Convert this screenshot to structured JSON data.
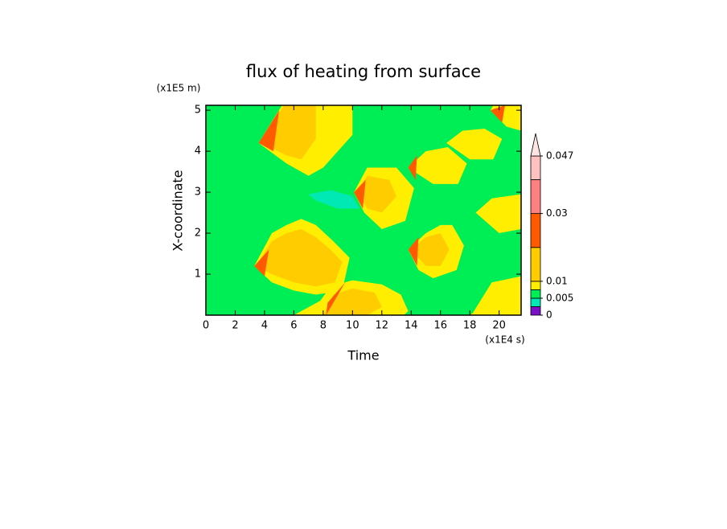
{
  "chart_data": {
    "type": "contour",
    "title": "flux of heating from surface",
    "x_label": "Time",
    "y_label": "X-coordinate",
    "x_unit": "(x1E4 s)",
    "y_unit": "(x1E5 m)",
    "xlim": [
      0,
      21.5
    ],
    "ylim": [
      0,
      5.12
    ],
    "xticks": [
      0,
      2,
      4,
      6,
      8,
      10,
      12,
      14,
      16,
      18,
      20
    ],
    "yticks": [
      1,
      2,
      3,
      4,
      5
    ],
    "background": "#00ee55",
    "colorbar": {
      "levels": [
        0,
        0.0025,
        0.005,
        0.0075,
        0.01,
        0.02,
        0.03,
        0.04,
        0.047
      ],
      "colors": [
        "#7a10c8",
        "#00e8b4",
        "#00ee55",
        "#ffee00",
        "#ffcc00",
        "#ff5a00",
        "#ff8080",
        "#ffc0c0"
      ],
      "extend_color": "#ffe4e4",
      "ticks": [
        0,
        0.005,
        0.01,
        0.03,
        0.047
      ]
    },
    "regions": [
      {
        "fill": "#ffee00",
        "x": [
          3.3,
          4.5,
          5.5,
          6.5,
          7.5,
          8.7,
          9.8,
          9.3,
          7.5,
          6,
          4.5
        ],
        "y": [
          1.2,
          2.0,
          2.2,
          2.35,
          2.2,
          1.8,
          1.4,
          0.6,
          0.5,
          0.6,
          0.8
        ]
      },
      {
        "fill": "#ffcc00",
        "x": [
          3.4,
          4.5,
          5.5,
          6.5,
          7.5,
          8.5,
          9.3,
          8.8,
          7.5,
          6,
          4.5
        ],
        "y": [
          1.2,
          1.8,
          2.0,
          2.1,
          1.9,
          1.6,
          1.3,
          0.8,
          0.7,
          0.8,
          1.0
        ]
      },
      {
        "fill": "#ffee00",
        "x": [
          3.6,
          4.8,
          5.2,
          10,
          10,
          8,
          7,
          5.5
        ],
        "y": [
          4.2,
          4.9,
          5.12,
          5.12,
          4.4,
          3.6,
          3.4,
          3.7
        ]
      },
      {
        "fill": "#ffcc00",
        "x": [
          3.8,
          4.8,
          5.3,
          7.5,
          7.5,
          6.5,
          5.5
        ],
        "y": [
          4.2,
          4.8,
          5.12,
          5.12,
          4.3,
          3.8,
          3.9
        ]
      },
      {
        "fill": "#ffee00",
        "x": [
          10.1,
          11,
          13,
          14.2,
          13.6,
          12,
          10.8
        ],
        "y": [
          3.0,
          3.6,
          3.6,
          3.1,
          2.3,
          2.1,
          2.5
        ]
      },
      {
        "fill": "#ffcc00",
        "x": [
          10.3,
          11,
          12.5,
          13,
          12,
          11
        ],
        "y": [
          3.0,
          3.4,
          3.3,
          2.9,
          2.5,
          2.6
        ]
      },
      {
        "fill": "#ffee00",
        "x": [
          6,
          7.8,
          8.5,
          10,
          12,
          13.3,
          13.8,
          13.5
        ],
        "y": [
          0,
          0.35,
          0.7,
          0.85,
          0.75,
          0.5,
          0.1,
          0
        ]
      },
      {
        "fill": "#ffcc00",
        "x": [
          8,
          8.7,
          10,
          11.5,
          12,
          11,
          8.5
        ],
        "y": [
          0,
          0.5,
          0.65,
          0.55,
          0.2,
          0,
          0
        ]
      },
      {
        "fill": "#ffee00",
        "x": [
          13.8,
          15,
          16,
          16.8,
          17.6,
          17.1,
          15.5,
          14.5
        ],
        "y": [
          1.6,
          2.0,
          2.2,
          2.2,
          1.7,
          1.1,
          0.9,
          1.1
        ]
      },
      {
        "fill": "#ffcc00",
        "x": [
          14,
          15,
          16,
          16.6,
          16,
          15
        ],
        "y": [
          1.6,
          1.9,
          2.0,
          1.6,
          1.2,
          1.2
        ]
      },
      {
        "fill": "#ffee00",
        "x": [
          13.8,
          15,
          16.5,
          17.8,
          17.2,
          15.5
        ],
        "y": [
          3.6,
          4.0,
          4.1,
          3.7,
          3.2,
          3.2
        ]
      },
      {
        "fill": "#ffee00",
        "x": [
          16.4,
          17.5,
          19,
          20.2,
          19.6,
          18
        ],
        "y": [
          4.2,
          4.5,
          4.55,
          4.3,
          3.8,
          3.8
        ]
      },
      {
        "fill": "#ffee00",
        "x": [
          19.4,
          20.5,
          21.5,
          21.5,
          19.6
        ],
        "y": [
          5.0,
          4.6,
          4.5,
          5.12,
          5.12
        ]
      },
      {
        "fill": "#ffee00",
        "x": [
          18.4,
          19.5,
          21.5,
          21.5,
          20
        ],
        "y": [
          2.5,
          2.85,
          2.95,
          2.1,
          2.0
        ]
      },
      {
        "fill": "#ffee00",
        "x": [
          18.2,
          19.5,
          21.5,
          21.5,
          18
        ],
        "y": [
          0.05,
          0.8,
          0.95,
          0,
          0
        ]
      },
      {
        "fill": "#ff5a00",
        "x": [
          3.3,
          4.3,
          4.0
        ],
        "y": [
          1.2,
          1.6,
          0.95
        ]
      },
      {
        "fill": "#ff5a00",
        "x": [
          3.6,
          5.0,
          4.6
        ],
        "y": [
          4.2,
          5.0,
          4.0
        ]
      },
      {
        "fill": "#ff5a00",
        "x": [
          10.1,
          10.9,
          10.7
        ],
        "y": [
          3.0,
          3.3,
          2.6
        ]
      },
      {
        "fill": "#ff5a00",
        "x": [
          8.3,
          9.5,
          8.2
        ],
        "y": [
          0.3,
          0.8,
          0
        ]
      },
      {
        "fill": "#ff5a00",
        "x": [
          13.8,
          14.5,
          14.4
        ],
        "y": [
          1.6,
          1.9,
          1.2
        ]
      },
      {
        "fill": "#ff5a00",
        "x": [
          13.8,
          14.4,
          14.3
        ],
        "y": [
          3.6,
          3.9,
          3.3
        ]
      },
      {
        "fill": "#ff5a00",
        "x": [
          19.4,
          20.2,
          20.4
        ],
        "y": [
          5.0,
          4.7,
          5.12
        ]
      },
      {
        "fill": "#00e8b4",
        "x": [
          7.0,
          8.5,
          10.0,
          10.5,
          9.0,
          7.5
        ],
        "y": [
          2.95,
          3.05,
          2.9,
          2.6,
          2.6,
          2.8
        ]
      }
    ]
  }
}
